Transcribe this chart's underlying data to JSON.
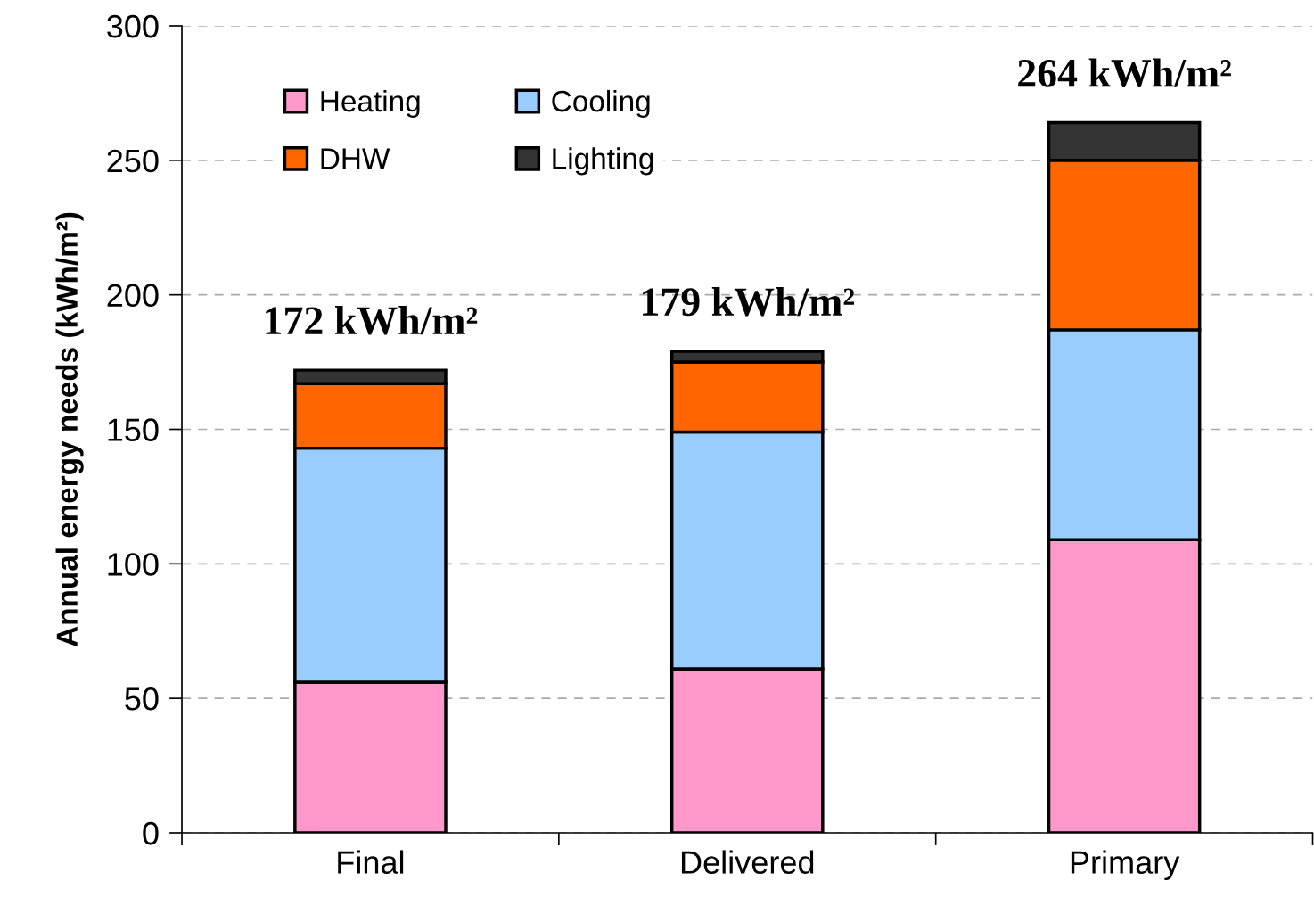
{
  "chart_data": {
    "type": "bar",
    "stacked": true,
    "categories": [
      "Final",
      "Delivered",
      "Primary"
    ],
    "series": [
      {
        "name": "Heating",
        "color": "#ff99cc",
        "values": [
          56,
          61,
          109
        ]
      },
      {
        "name": "Cooling",
        "color": "#99ccff",
        "values": [
          87,
          88,
          78
        ]
      },
      {
        "name": "DHW",
        "color": "#ff6600",
        "values": [
          24,
          26,
          63
        ]
      },
      {
        "name": "Lighting",
        "color": "#333333",
        "values": [
          5,
          4,
          14
        ]
      }
    ],
    "totals": [
      "172 kWh/m²",
      "179 kWh/m²",
      "264 kWh/m²"
    ],
    "ylabel": "Annual energy needs (kWh/m²)",
    "ylim": [
      0,
      300
    ],
    "yticks": [
      0,
      50,
      100,
      150,
      200,
      250,
      300
    ],
    "grid": "y",
    "legend": "top left"
  }
}
